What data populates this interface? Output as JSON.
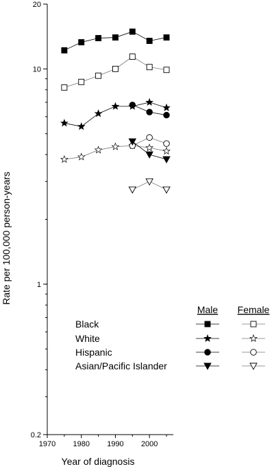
{
  "chart_data": {
    "type": "line",
    "xlabel": "Year of diagnosis",
    "ylabel": "Rate per 100,000 person-years",
    "yscale": "log",
    "xlim": [
      1970,
      2007
    ],
    "ylim": [
      0.2,
      20
    ],
    "x_ticks": [
      1970,
      1980,
      1990,
      2000
    ],
    "x_tick_labels": [
      "1970",
      "1980",
      "1990",
      "2000"
    ],
    "y_ticks": [
      0.2,
      1,
      10,
      20
    ],
    "y_tick_labels": [
      "0.2",
      "1",
      "10",
      "20"
    ],
    "grid": false,
    "legend": {
      "position": "bottom-right",
      "male_header": "Male",
      "female_header": "Female",
      "entries": [
        "Black",
        "White",
        "Hispanic",
        "Asian/Pacific Islander"
      ]
    },
    "series": [
      {
        "name": "Black Male",
        "group": "Black",
        "sex": "male",
        "marker": "square",
        "filled": true,
        "x": [
          1975,
          1980,
          1985,
          1990,
          1995,
          2000,
          2005
        ],
        "y": [
          12.2,
          13.3,
          13.9,
          14.0,
          14.9,
          13.5,
          14.0
        ]
      },
      {
        "name": "Black Female",
        "group": "Black",
        "sex": "female",
        "marker": "square",
        "filled": false,
        "x": [
          1975,
          1980,
          1985,
          1990,
          1995,
          2000,
          2005
        ],
        "y": [
          8.2,
          8.7,
          9.3,
          10.0,
          11.4,
          10.2,
          9.9
        ]
      },
      {
        "name": "White Male",
        "group": "White",
        "sex": "male",
        "marker": "star",
        "filled": true,
        "x": [
          1975,
          1980,
          1985,
          1990,
          1995,
          2000,
          2005
        ],
        "y": [
          5.6,
          5.4,
          6.2,
          6.7,
          6.7,
          7.0,
          6.6
        ]
      },
      {
        "name": "White Female",
        "group": "White",
        "sex": "female",
        "marker": "star",
        "filled": false,
        "x": [
          1975,
          1980,
          1985,
          1990,
          1995,
          2000,
          2005
        ],
        "y": [
          3.8,
          3.9,
          4.2,
          4.35,
          4.4,
          4.3,
          4.15
        ]
      },
      {
        "name": "Hispanic Male",
        "group": "Hispanic",
        "sex": "male",
        "marker": "circle",
        "filled": true,
        "x": [
          1995,
          2000,
          2005
        ],
        "y": [
          6.8,
          6.3,
          6.1
        ]
      },
      {
        "name": "Hispanic Female",
        "group": "Hispanic",
        "sex": "female",
        "marker": "circle",
        "filled": false,
        "x": [
          1995,
          2000,
          2005
        ],
        "y": [
          4.4,
          4.8,
          4.5
        ]
      },
      {
        "name": "Asian/Pacific Islander Male",
        "group": "Asian/Pacific Islander",
        "sex": "male",
        "marker": "triangle-down",
        "filled": true,
        "x": [
          1995,
          2000,
          2005
        ],
        "y": [
          4.6,
          4.0,
          3.8
        ]
      },
      {
        "name": "Asian/Pacific Islander Female",
        "group": "Asian/Pacific Islander",
        "sex": "female",
        "marker": "triangle-down",
        "filled": false,
        "x": [
          1995,
          2000,
          2005
        ],
        "y": [
          2.75,
          3.0,
          2.75
        ]
      }
    ]
  }
}
